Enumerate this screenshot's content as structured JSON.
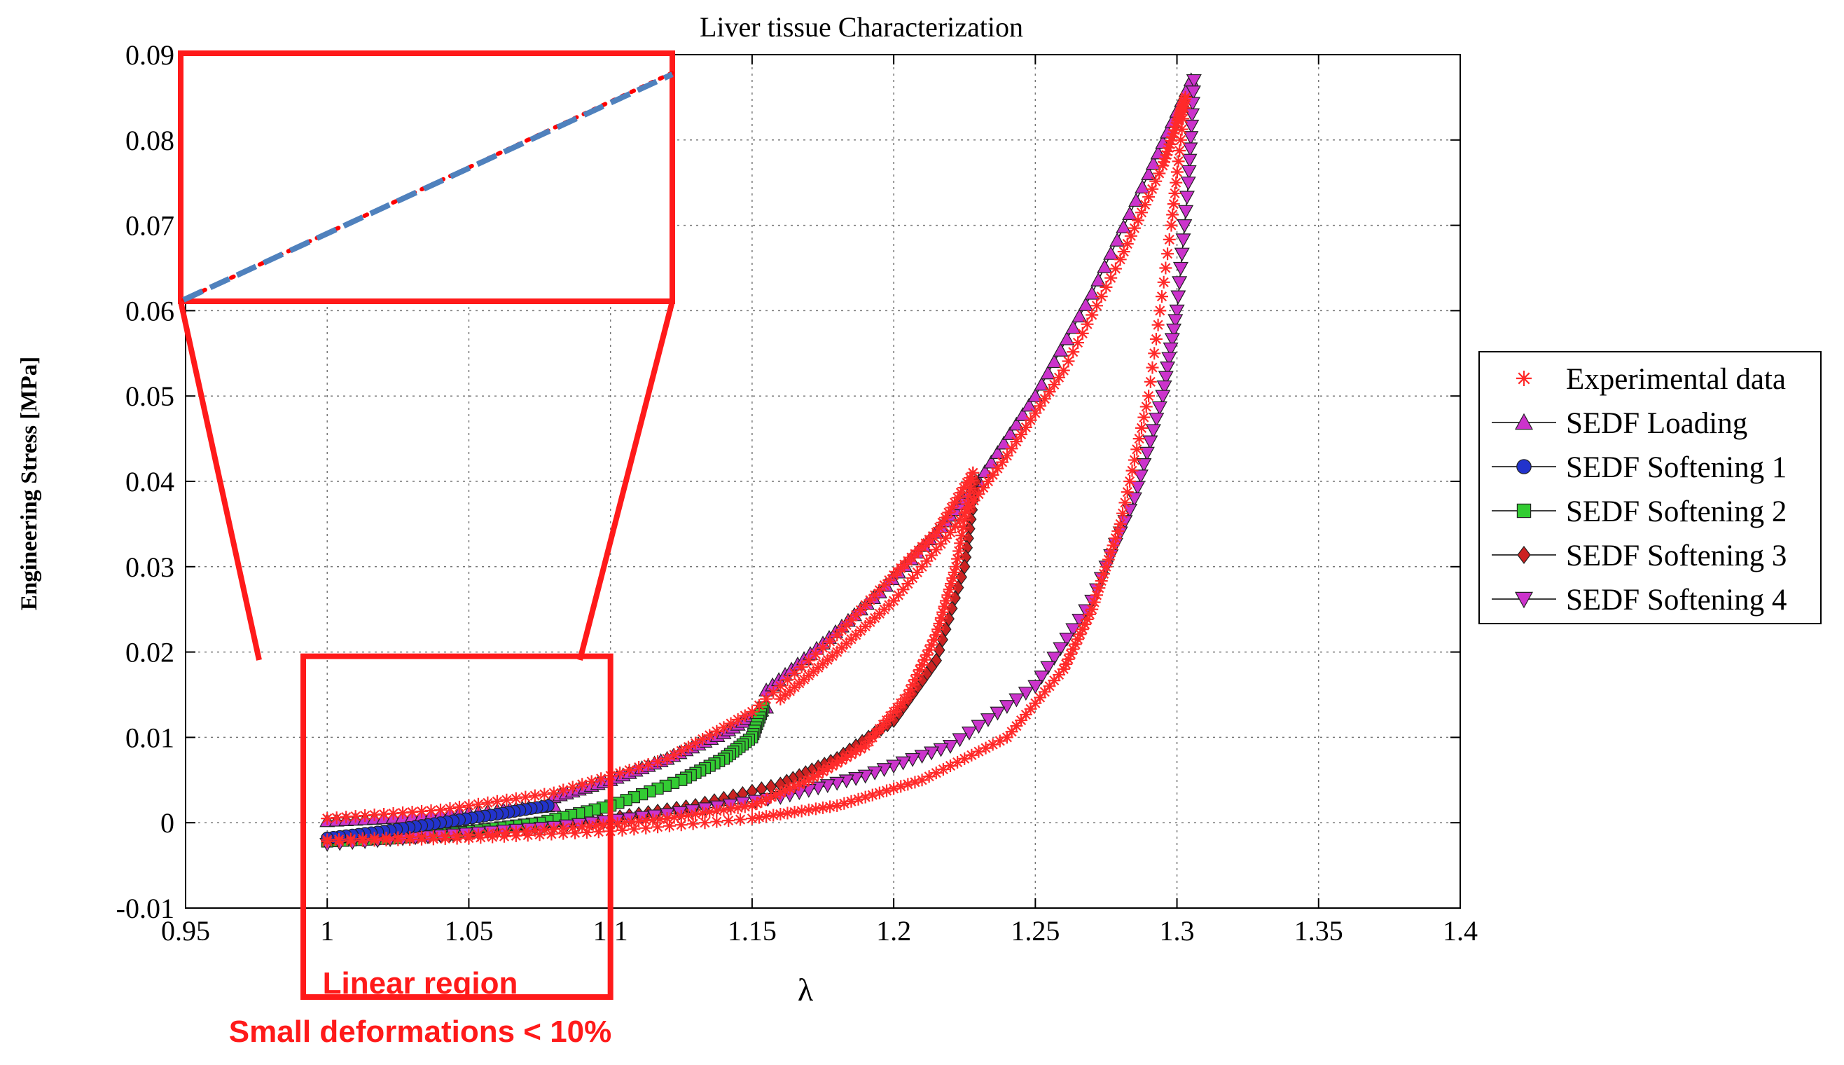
{
  "chart_data": {
    "type": "scatter",
    "title": "Liver tissue Characterization",
    "xlabel": "λ",
    "ylabel": "Engineering Stress [MPa]",
    "xlim": [
      0.95,
      1.4
    ],
    "ylim": [
      -0.01,
      0.09
    ],
    "xticks": [
      0.95,
      1.0,
      1.05,
      1.1,
      1.15,
      1.2,
      1.25,
      1.3,
      1.35,
      1.4
    ],
    "xtick_labels": [
      "0.95",
      "1",
      "1.05",
      "1.1",
      "1.15",
      "1.2",
      "1.25",
      "1.3",
      "1.35",
      "1.4"
    ],
    "yticks": [
      -0.01,
      0.0,
      0.01,
      0.02,
      0.03,
      0.04,
      0.05,
      0.06,
      0.07,
      0.08,
      0.09
    ],
    "ytick_labels": [
      "-0.01",
      "0",
      "0.01",
      "0.02",
      "0.03",
      "0.04",
      "0.05",
      "0.06",
      "0.07",
      "0.08",
      "0.09"
    ],
    "grid": true,
    "legend_position": "right",
    "series": [
      {
        "name": "Experimental data",
        "marker": "star",
        "color": "#ff2a2a",
        "segments": [
          {
            "x": [
              1.0,
              1.04,
              1.08,
              1.12,
              1.15,
              1.18,
              1.2,
              1.215,
              1.228
            ],
            "y": [
              0.0005,
              0.0015,
              0.0035,
              0.0075,
              0.013,
              0.022,
              0.029,
              0.034,
              0.041
            ]
          },
          {
            "x": [
              1.228,
              1.222,
              1.215,
              1.205,
              1.19,
              1.17,
              1.15,
              1.12,
              1.09,
              1.05,
              1.0
            ],
            "y": [
              0.041,
              0.03,
              0.022,
              0.015,
              0.009,
              0.005,
              0.002,
              0.0005,
              -0.0005,
              -0.0015,
              -0.002
            ]
          },
          {
            "x": [
              1.16,
              1.18,
              1.2,
              1.22,
              1.24,
              1.26,
              1.28,
              1.295,
              1.3,
              1.303
            ],
            "y": [
              0.0145,
              0.02,
              0.026,
              0.034,
              0.043,
              0.053,
              0.066,
              0.077,
              0.082,
              0.085
            ]
          },
          {
            "x": [
              1.303,
              1.298,
              1.29,
              1.28,
              1.27,
              1.26,
              1.24,
              1.21,
              1.18,
              1.15,
              1.1,
              1.05,
              1.0
            ],
            "y": [
              0.085,
              0.07,
              0.05,
              0.035,
              0.025,
              0.018,
              0.01,
              0.005,
              0.002,
              0.0005,
              -0.001,
              -0.0018,
              -0.0022
            ]
          }
        ]
      },
      {
        "name": "SEDF Loading",
        "marker": "triangle-up",
        "color": "#cc33cc",
        "segments": [
          {
            "x": [
              1.0,
              1.03,
              1.06,
              1.08
            ],
            "y": [
              0.0002,
              0.0007,
              0.0014,
              0.002
            ]
          },
          {
            "x": [
              1.08,
              1.1,
              1.12,
              1.14,
              1.155
            ],
            "y": [
              0.003,
              0.005,
              0.0075,
              0.0105,
              0.0135
            ]
          },
          {
            "x": [
              1.155,
              1.175,
              1.195,
              1.215,
              1.23
            ],
            "y": [
              0.0155,
              0.021,
              0.027,
              0.034,
              0.04
            ]
          },
          {
            "x": [
              1.23,
              1.25,
              1.27,
              1.29,
              1.305
            ],
            "y": [
              0.04,
              0.05,
              0.062,
              0.076,
              0.087
            ]
          }
        ]
      },
      {
        "name": "SEDF Softening 1",
        "marker": "circle",
        "color": "#2233cc",
        "segments": [
          {
            "x": [
              1.078,
              1.06,
              1.04,
              1.02,
              1.0
            ],
            "y": [
              0.002,
              0.001,
              0.0,
              -0.001,
              -0.0018
            ]
          }
        ]
      },
      {
        "name": "SEDF Softening 2",
        "marker": "square",
        "color": "#33cc33",
        "segments": [
          {
            "x": [
              1.154,
              1.15,
              1.14,
              1.125,
              1.1,
              1.075,
              1.05,
              1.025,
              1.0
            ],
            "y": [
              0.0135,
              0.01,
              0.0075,
              0.005,
              0.002,
              0.0,
              -0.001,
              -0.0018,
              -0.0022
            ]
          }
        ]
      },
      {
        "name": "SEDF Softening 3",
        "marker": "diamond",
        "color": "#cc2222",
        "segments": [
          {
            "x": [
              1.229,
              1.225,
              1.215,
              1.2,
              1.18,
              1.16,
              1.13,
              1.1,
              1.07,
              1.04,
              1.0
            ],
            "y": [
              0.04,
              0.03,
              0.019,
              0.012,
              0.0075,
              0.0045,
              0.002,
              0.0005,
              -0.0007,
              -0.0015,
              -0.0023
            ]
          }
        ]
      },
      {
        "name": "SEDF Softening 4",
        "marker": "triangle-down",
        "color": "#cc33cc",
        "segments": [
          {
            "x": [
              1.306,
              1.304,
              1.3,
              1.295,
              1.285,
              1.27,
              1.25,
              1.22,
              1.19,
              1.16,
              1.12,
              1.08,
              1.04,
              1.0
            ],
            "y": [
              0.087,
              0.075,
              0.06,
              0.05,
              0.038,
              0.026,
              0.016,
              0.009,
              0.0055,
              0.003,
              0.001,
              -0.0005,
              -0.0015,
              -0.0025
            ]
          }
        ]
      }
    ],
    "annotations": {
      "linear_region_label": "Linear region",
      "small_deformation_label": "Small deformations < 10%",
      "zoom_box_range": {
        "x": [
          0.995,
          1.1
        ],
        "y": [
          -0.0155,
          0.0195
        ]
      },
      "inset_lines": [
        {
          "style": "dashed",
          "color": "#4f81bd"
        },
        {
          "style": "dotted",
          "color": "#ff0000"
        }
      ]
    }
  }
}
